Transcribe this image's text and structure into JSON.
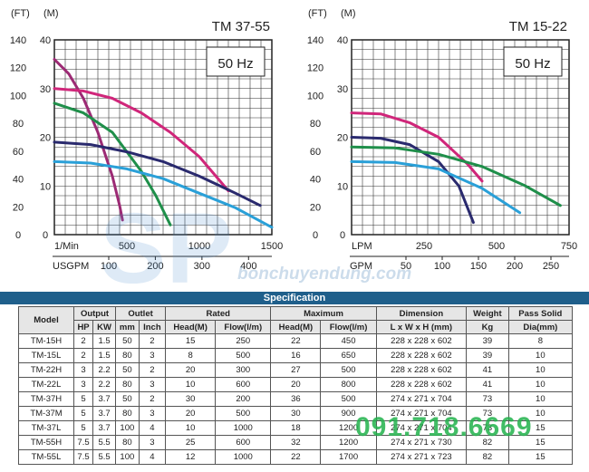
{
  "chart_data": [
    {
      "type": "line",
      "title": "TM 37-55",
      "box_label": "50 Hz",
      "y_left_label": "(FT)",
      "y_right_label": "(M)",
      "x_label_primary": "1/Min",
      "x_label_secondary": "USGPM",
      "xlim": [
        0,
        1500
      ],
      "ylim_m": [
        0,
        40
      ],
      "ylim_ft": [
        0,
        140
      ],
      "x_ticks": [
        "500",
        "1000",
        "1500"
      ],
      "x_ticks_secondary": [
        "100",
        "200",
        "300",
        "400"
      ],
      "y_ticks_m": [
        "0",
        "10",
        "20",
        "30",
        "40"
      ],
      "y_ticks_ft": [
        "0",
        "20",
        "40",
        "60",
        "80",
        "100",
        "120",
        "140"
      ],
      "grid": true,
      "series": [
        {
          "color": "#9c2a74",
          "x": [
            0,
            100,
            200,
            300,
            400,
            450,
            470
          ],
          "y": [
            36,
            33,
            28,
            21,
            12,
            6,
            3
          ]
        },
        {
          "color": "#d0267a",
          "x": [
            0,
            200,
            400,
            600,
            800,
            1000,
            1200
          ],
          "y": [
            30,
            29.5,
            28,
            25,
            21,
            16,
            9
          ]
        },
        {
          "color": "#1f8f4a",
          "x": [
            0,
            200,
            400,
            600,
            700,
            800
          ],
          "y": [
            27,
            25,
            21,
            13,
            8,
            2
          ]
        },
        {
          "color": "#2a2a6e",
          "x": [
            0,
            250,
            500,
            750,
            1000,
            1250,
            1420
          ],
          "y": [
            19,
            18.5,
            17,
            15,
            12,
            8.5,
            6
          ]
        },
        {
          "color": "#2aa0d8",
          "x": [
            0,
            250,
            500,
            750,
            1000,
            1250,
            1500
          ],
          "y": [
            15,
            14.7,
            13.5,
            11.5,
            8.5,
            5.5,
            1.5
          ]
        }
      ]
    },
    {
      "type": "line",
      "title": "TM 15-22",
      "box_label": "50 Hz",
      "y_left_label": "(FT)",
      "y_right_label": "(M)",
      "x_label_primary": "LPM",
      "x_label_secondary": "GPM",
      "xlim": [
        0,
        750
      ],
      "ylim_m": [
        0,
        40
      ],
      "ylim_ft": [
        0,
        140
      ],
      "x_ticks": [
        "250",
        "500",
        "750"
      ],
      "x_ticks_secondary": [
        "50",
        "100",
        "150",
        "200",
        "250"
      ],
      "y_ticks_m": [
        "0",
        "10",
        "20",
        "30",
        "40"
      ],
      "y_ticks_ft": [
        "0",
        "20",
        "40",
        "60",
        "80",
        "100",
        "120",
        "140"
      ],
      "grid": true,
      "series": [
        {
          "color": "#d0267a",
          "x": [
            0,
            100,
            200,
            300,
            400,
            450
          ],
          "y": [
            25,
            24.8,
            23,
            20,
            14.5,
            11
          ]
        },
        {
          "color": "#2a2a6e",
          "x": [
            0,
            100,
            200,
            300,
            370,
            420
          ],
          "y": [
            20,
            19.8,
            18.5,
            15,
            10,
            2.5
          ]
        },
        {
          "color": "#1f8f4a",
          "x": [
            0,
            150,
            300,
            450,
            600,
            720
          ],
          "y": [
            18,
            17.8,
            16.5,
            14,
            10,
            6
          ]
        },
        {
          "color": "#2aa0d8",
          "x": [
            0,
            150,
            300,
            450,
            580
          ],
          "y": [
            15,
            14.8,
            13.5,
            9.5,
            4.5
          ]
        }
      ]
    }
  ],
  "spec": {
    "title": "Specification",
    "head1": {
      "model": "Model",
      "output": "Output",
      "outlet": "Outlet",
      "rated": "Rated",
      "maximum": "Maximum",
      "dimension": "Dimension",
      "weight": "Weight",
      "pass_solid": "Pass Solid"
    },
    "head2": {
      "hp": "HP",
      "kw": "KW",
      "mm": "mm",
      "inch": "Inch",
      "head_m": "Head(M)",
      "flow": "Flow(l/m)",
      "head_m2": "Head(M)",
      "flow2": "Flow(l/m)",
      "dim": "L x W x H (mm)",
      "kg": "Kg",
      "dia": "Dia(mm)"
    },
    "rows": [
      [
        "TM-15H",
        "2",
        "1.5",
        "50",
        "2",
        "15",
        "250",
        "22",
        "450",
        "228 x 228 x 602",
        "39",
        "8"
      ],
      [
        "TM-15L",
        "2",
        "1.5",
        "80",
        "3",
        "8",
        "500",
        "16",
        "650",
        "228 x 228 x 602",
        "39",
        "10"
      ],
      [
        "TM-22H",
        "3",
        "2.2",
        "50",
        "2",
        "20",
        "300",
        "27",
        "500",
        "228 x 228 x 602",
        "41",
        "10"
      ],
      [
        "TM-22L",
        "3",
        "2.2",
        "80",
        "3",
        "10",
        "600",
        "20",
        "800",
        "228 x 228 x 602",
        "41",
        "10"
      ],
      [
        "TM-37H",
        "5",
        "3.7",
        "50",
        "2",
        "30",
        "200",
        "36",
        "500",
        "274 x 271 x 704",
        "73",
        "10"
      ],
      [
        "TM-37M",
        "5",
        "3.7",
        "80",
        "3",
        "20",
        "500",
        "30",
        "900",
        "274 x 271 x 704",
        "73",
        "10"
      ],
      [
        "TM-37L",
        "5",
        "3.7",
        "100",
        "4",
        "10",
        "1000",
        "18",
        "1200",
        "274 x 271 x 704",
        "73",
        "15"
      ],
      [
        "TM-55H",
        "7.5",
        "5.5",
        "80",
        "3",
        "25",
        "600",
        "32",
        "1200",
        "274 x 271 x 730",
        "82",
        "15"
      ],
      [
        "TM-55L",
        "7.5",
        "5.5",
        "100",
        "4",
        "12",
        "1000",
        "22",
        "1700",
        "274 x 271 x 723",
        "82",
        "15"
      ]
    ]
  },
  "watermark": {
    "sub": "bonchuyendung.com",
    "phone": "091.718.6669"
  }
}
